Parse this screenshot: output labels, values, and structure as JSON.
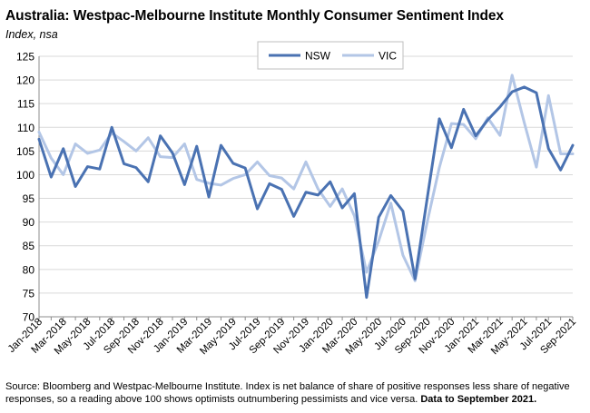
{
  "title": "Australia: Westpac-Melbourne Institute Monthly Consumer Sentiment Index",
  "subtitle": "Index, nsa",
  "footnote": {
    "text": "Source: Bloomberg and Westpac-Melbourne Institute.  Index is net balance of share of positive responses less share of negative responses, so a reading above 100 shows optimists outnumbering pessimists and vice versa.",
    "bold": "Data to September 2021."
  },
  "colors": {
    "NSW": "#4a72b2",
    "VIC": "#b3c6e6",
    "grid": "#d9d9d9"
  },
  "chart_data": {
    "type": "line",
    "title": "Australia: Westpac-Melbourne Institute Monthly Consumer Sentiment Index",
    "ylabel": "Index, nsa",
    "ylim": [
      70,
      125
    ],
    "yticks": [
      70,
      75,
      80,
      85,
      90,
      95,
      100,
      105,
      110,
      115,
      120,
      125
    ],
    "grid": true,
    "legend": "top-center",
    "x": [
      "Jan-2018",
      "Feb-2018",
      "Mar-2018",
      "Apr-2018",
      "May-2018",
      "Jun-2018",
      "Jul-2018",
      "Aug-2018",
      "Sep-2018",
      "Oct-2018",
      "Nov-2018",
      "Dec-2018",
      "Jan-2019",
      "Feb-2019",
      "Mar-2019",
      "Apr-2019",
      "May-2019",
      "Jun-2019",
      "Jul-2019",
      "Aug-2019",
      "Sep-2019",
      "Oct-2019",
      "Nov-2019",
      "Dec-2019",
      "Jan-2020",
      "Feb-2020",
      "Mar-2020",
      "Apr-2020",
      "May-2020",
      "Jun-2020",
      "Jul-2020",
      "Aug-2020",
      "Sep-2020",
      "Oct-2020",
      "Nov-2020",
      "Dec-2020",
      "Jan-2021",
      "Feb-2021",
      "Mar-2021",
      "Apr-2021",
      "May-2021",
      "Jun-2021",
      "Jul-2021",
      "Aug-2021",
      "Sep-2021"
    ],
    "xtick_labels": [
      "Jan-2018",
      "Mar-2018",
      "May-2018",
      "Jul-2018",
      "Sep-2018",
      "Nov-2018",
      "Jan-2019",
      "Mar-2019",
      "May-2019",
      "Jul-2019",
      "Sep-2019",
      "Nov-2019",
      "Jan-2020",
      "Mar-2020",
      "May-2020",
      "Jul-2020",
      "Sep-2020",
      "Nov-2020",
      "Jan-2021",
      "Mar-2021",
      "May-2021",
      "Jul-2021",
      "Sep-2021"
    ],
    "series": [
      {
        "name": "NSW",
        "values": [
          107.5,
          99.5,
          105.5,
          97.5,
          101.7,
          101.2,
          110.0,
          102.3,
          101.5,
          98.5,
          108.2,
          104.6,
          97.9,
          106.0,
          95.3,
          106.2,
          102.4,
          101.4,
          92.8,
          98.1,
          96.9,
          91.2,
          96.3,
          95.7,
          98.5,
          93.0,
          96.0,
          74.1,
          91.0,
          95.6,
          92.3,
          78.0,
          95.0,
          111.8,
          105.7,
          113.8,
          108.2,
          111.6,
          114.3,
          117.5,
          118.5,
          117.3,
          105.5,
          101.0,
          106.2
        ]
      },
      {
        "name": "VIC",
        "values": [
          109.0,
          103.5,
          100.0,
          106.5,
          104.5,
          105.2,
          108.8,
          107.0,
          105.0,
          107.8,
          103.8,
          103.6,
          106.5,
          99.0,
          98.2,
          97.8,
          99.2,
          100.0,
          102.7,
          99.8,
          99.3,
          97.0,
          102.7,
          97.0,
          93.3,
          97.0,
          91.3,
          79.4,
          86.0,
          94.0,
          83.0,
          77.6,
          90.0,
          101.5,
          110.8,
          110.6,
          107.6,
          112.0,
          108.3,
          121.0,
          111.0,
          101.6,
          116.7,
          104.4,
          104.4
        ]
      }
    ]
  }
}
